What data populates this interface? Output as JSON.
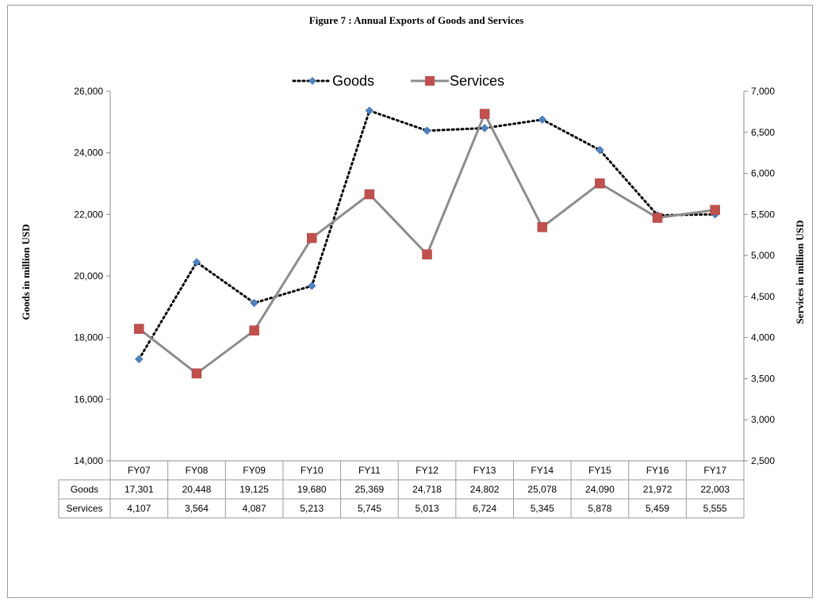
{
  "chart_data": {
    "type": "line",
    "title": "Figure  7 : Annual Exports of Goods and Services",
    "categories": [
      "FY07",
      "FY08",
      "FY09",
      "FY10",
      "FY11",
      "FY12",
      "FY13",
      "FY14",
      "FY15",
      "FY16",
      "FY17"
    ],
    "series": [
      {
        "name": "Goods",
        "axis": "left",
        "values": [
          17301,
          20448,
          19125,
          19680,
          25369,
          24718,
          24802,
          25078,
          24090,
          21972,
          22003
        ],
        "table_labels": [
          "17,301",
          "20,448",
          "19,125",
          "19,680",
          "25,369",
          "24,718",
          "24,802",
          "25,078",
          "24,090",
          "21,972",
          "22,003"
        ],
        "color": "#4f81bd",
        "line_color": "#000000",
        "line_style": "dotted",
        "marker": "diamond"
      },
      {
        "name": "Services",
        "axis": "right",
        "values": [
          4107,
          3564,
          4087,
          5213,
          5745,
          5013,
          6724,
          5345,
          5878,
          5459,
          5555
        ],
        "table_labels": [
          "4,107",
          "3,564",
          "4,087",
          "5,213",
          "5,745",
          "5,013",
          "6,724",
          "5,345",
          "5,878",
          "5,459",
          "5,555"
        ],
        "color": "#c0504d",
        "line_color": "#8c8c8c",
        "line_style": "solid",
        "marker": "square"
      }
    ],
    "ylabel": "Goods in million USD",
    "ylim": [
      14000,
      26000
    ],
    "y_ticks": [
      "14,000",
      "16,000",
      "18,000",
      "20,000",
      "22,000",
      "24,000",
      "26,000"
    ],
    "y2label": "Services in million USD",
    "y2lim": [
      2500,
      7000
    ],
    "y2_ticks": [
      "2,500",
      "3,000",
      "3,500",
      "4,000",
      "4,500",
      "5,000",
      "5,500",
      "6,000",
      "6,500",
      "7,000"
    ],
    "grid": false,
    "legend": "top-center",
    "data_table": true
  }
}
